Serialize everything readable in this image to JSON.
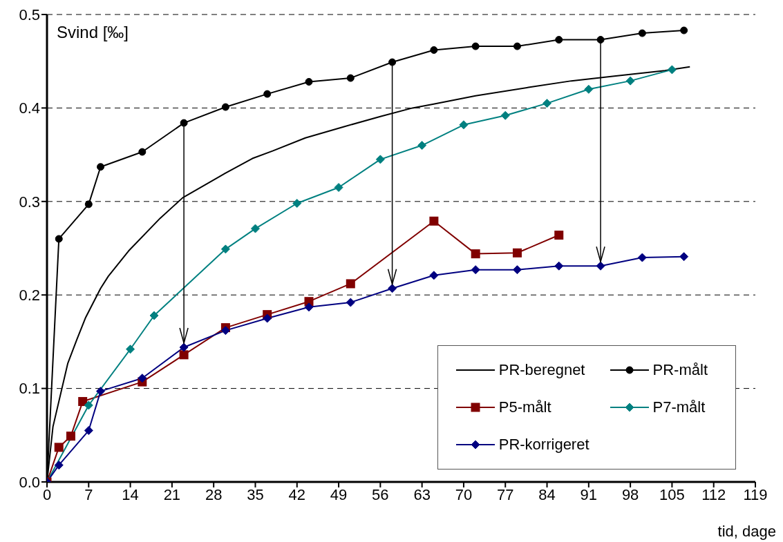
{
  "chart_data": {
    "type": "line",
    "ylabel": "Svind [‰]",
    "xlabel": "tid, dage",
    "xlim": [
      0,
      119
    ],
    "xticks": [
      0,
      7,
      14,
      21,
      28,
      35,
      42,
      49,
      56,
      63,
      70,
      77,
      84,
      91,
      98,
      105,
      112,
      119
    ],
    "ylim": [
      0,
      0.5
    ],
    "yticks": [
      {
        "value": 0,
        "label": "0.0"
      },
      0.1,
      0.2,
      0.3,
      0.4,
      0.5
    ],
    "grid": "y",
    "legend": "bottom right",
    "series": [
      {
        "name": "PR-beregnet",
        "color": "#000000",
        "marker": "none",
        "x": [
          0,
          1,
          3.5,
          5,
          6.5,
          9,
          10.3,
          13.7,
          19,
          22.8,
          29.9,
          34.5,
          37.9,
          43.4,
          49.9,
          56.1,
          61.4,
          64.8,
          72,
          80.9,
          88.1,
          95.3,
          103.8,
          108
        ],
        "values": [
          0,
          0.059,
          0.127,
          0.152,
          0.176,
          0.207,
          0.22,
          0.247,
          0.282,
          0.304,
          0.33,
          0.346,
          0.354,
          0.368,
          0.38,
          0.391,
          0.4,
          0.404,
          0.413,
          0.422,
          0.429,
          0.434,
          0.44,
          0.444
        ]
      },
      {
        "name": "PR-målt",
        "color": "#000000",
        "marker": "circle",
        "x": [
          0,
          2,
          7,
          9,
          16,
          23,
          30,
          37,
          44,
          51,
          58,
          65,
          72,
          79,
          86,
          93,
          100,
          107
        ],
        "values": [
          0,
          0.26,
          0.297,
          0.337,
          0.353,
          0.384,
          0.401,
          0.415,
          0.428,
          0.432,
          0.449,
          0.462,
          0.466,
          0.466,
          0.473,
          0.473,
          0.48,
          0.483
        ]
      },
      {
        "name": "P5-målt",
        "color": "#800000",
        "marker": "square",
        "x": [
          0,
          2,
          4,
          6,
          16,
          23,
          30,
          37,
          44,
          51,
          65,
          72,
          79,
          86
        ],
        "values": [
          0,
          0.037,
          0.049,
          0.086,
          0.107,
          0.136,
          0.165,
          0.179,
          0.193,
          0.212,
          0.279,
          0.244,
          0.245,
          0.264
        ]
      },
      {
        "name": "P7-målt",
        "color": "#008080",
        "marker": "diamond",
        "x": [
          0,
          7,
          14,
          18,
          30,
          35,
          42,
          49,
          56,
          63,
          70,
          77,
          84,
          91,
          98,
          105
        ],
        "values": [
          0,
          0.082,
          0.142,
          0.178,
          0.249,
          0.271,
          0.298,
          0.315,
          0.345,
          0.36,
          0.382,
          0.392,
          0.405,
          0.42,
          0.429,
          0.441
        ]
      },
      {
        "name": "PR-korrigeret",
        "color": "#000080",
        "marker": "diamond",
        "x": [
          0,
          2,
          7,
          9,
          16,
          23,
          30,
          37,
          44,
          51,
          58,
          65,
          72,
          79,
          86,
          93,
          100,
          107
        ],
        "values": [
          0,
          0.018,
          0.055,
          0.097,
          0.111,
          0.144,
          0.162,
          0.175,
          0.187,
          0.192,
          0.207,
          0.221,
          0.227,
          0.227,
          0.231,
          0.231,
          0.24,
          0.241
        ]
      }
    ]
  }
}
